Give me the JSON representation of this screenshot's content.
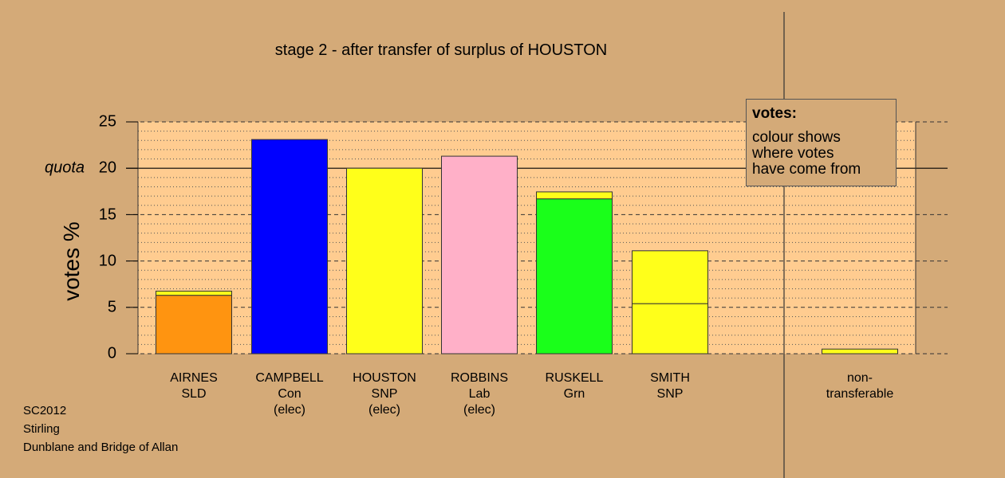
{
  "chart_data": {
    "type": "bar",
    "title": "stage 2 - after transfer of surplus of HOUSTON",
    "ylabel": "votes %",
    "ylim": [
      0,
      25
    ],
    "yticks": [
      "0",
      "5",
      "10",
      "15",
      "20",
      "25"
    ],
    "quota_label": "quota",
    "quota": 20,
    "grid": true,
    "categories": [
      {
        "line1": "AIRNES",
        "line2": "SLD",
        "line3": ""
      },
      {
        "line1": "CAMPBELL",
        "line2": "Con",
        "line3": "(elec)"
      },
      {
        "line1": "HOUSTON",
        "line2": "SNP",
        "line3": "(elec)"
      },
      {
        "line1": "ROBBINS",
        "line2": "Lab",
        "line3": "(elec)"
      },
      {
        "line1": "RUSKELL",
        "line2": "Grn",
        "line3": ""
      },
      {
        "line1": "SMITH",
        "line2": "SNP",
        "line3": ""
      },
      {
        "line1": "non-",
        "line2": "transferable",
        "line3": ""
      }
    ],
    "bars": [
      {
        "segments": [
          {
            "value": 6.3,
            "color": "#ff9410"
          },
          {
            "value": 0.45,
            "color": "#ffff1a"
          }
        ]
      },
      {
        "segments": [
          {
            "value": 23.1,
            "color": "#0000ff"
          }
        ]
      },
      {
        "segments": [
          {
            "value": 20.0,
            "color": "#ffff1a"
          }
        ]
      },
      {
        "segments": [
          {
            "value": 21.3,
            "color": "#ffb0c8"
          }
        ]
      },
      {
        "segments": [
          {
            "value": 16.7,
            "color": "#1aff1a"
          },
          {
            "value": 0.75,
            "color": "#ffff1a"
          }
        ]
      },
      {
        "segments": [
          {
            "value": 5.4,
            "color": "#ffff1a"
          },
          {
            "value": 5.7,
            "color": "#ffff1a"
          }
        ]
      },
      {
        "segments": [
          {
            "value": 0.5,
            "color": "#ffff1a"
          }
        ]
      }
    ]
  },
  "legend": {
    "title": "votes:",
    "line1": "colour shows",
    "line2": "where votes",
    "line3": "have come from"
  },
  "footer": {
    "line1": "SC2012",
    "line2": "Stirling",
    "line3": "Dunblane and Bridge of Allan"
  },
  "colors": {
    "background": "#d4aa78",
    "plot_background": "#ffcc90"
  }
}
